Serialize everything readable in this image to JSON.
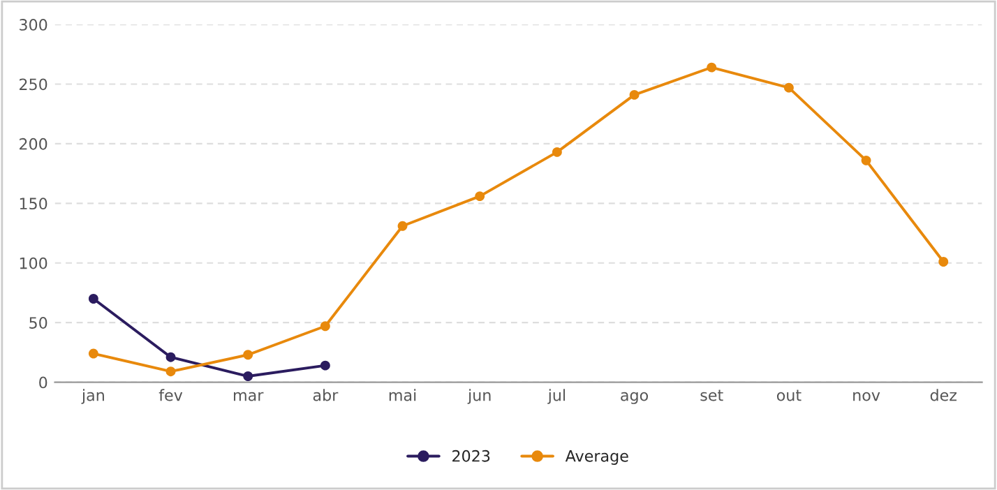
{
  "chart_data": {
    "type": "line",
    "categories": [
      "jan",
      "fev",
      "mar",
      "abr",
      "mai",
      "jun",
      "jul",
      "ago",
      "set",
      "out",
      "nov",
      "dez"
    ],
    "series": [
      {
        "name": "2023",
        "color": "#2b1c5f",
        "values": [
          70,
          21,
          5,
          14,
          null,
          null,
          null,
          null,
          null,
          null,
          null,
          null
        ]
      },
      {
        "name": "Average",
        "color": "#e8890c",
        "values": [
          24,
          9,
          23,
          47,
          131,
          156,
          193,
          241,
          264,
          247,
          186,
          101
        ]
      }
    ],
    "ylim": [
      0,
      300
    ],
    "yticks": [
      0,
      50,
      100,
      150,
      200,
      250,
      300
    ],
    "grid": "y",
    "legend": "bottom",
    "marker": "circle",
    "line_style": "solid"
  }
}
